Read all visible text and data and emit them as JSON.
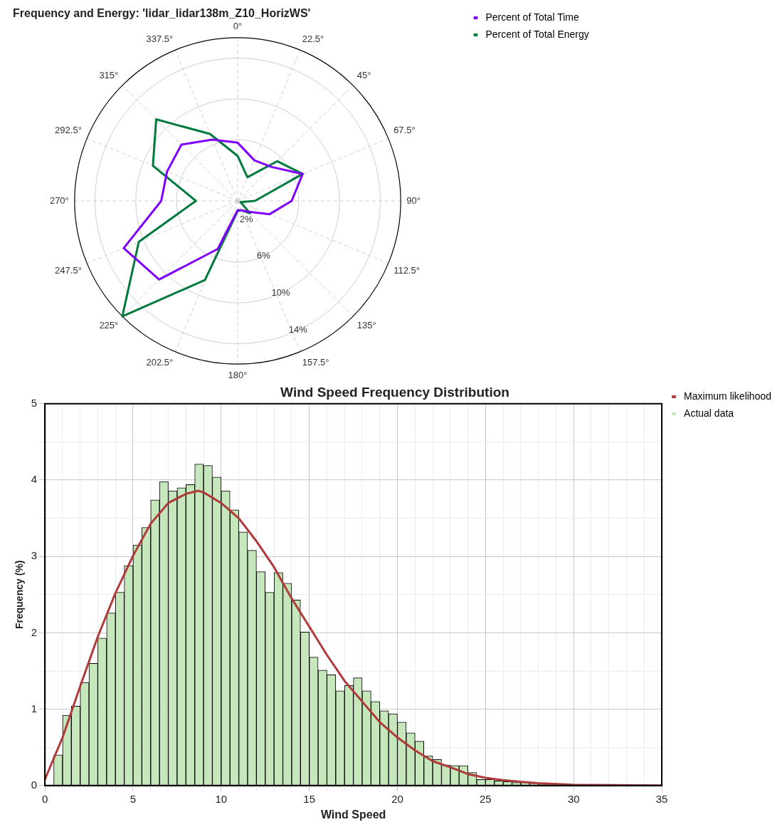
{
  "chart_data": [
    {
      "type": "radar",
      "title": "Frequency and Energy: 'lidar_lidar138m_Z10_HorizWS'",
      "categories": [
        "0°",
        "22.5°",
        "45°",
        "67.5°",
        "90°",
        "112.5°",
        "135°",
        "157.5°",
        "180°",
        "202.5°",
        "225°",
        "247.5°",
        "270°",
        "292.5°",
        "315°",
        "337.5°"
      ],
      "series": [
        {
          "name": "Percent of Total Time",
          "color": "#8000ff",
          "values": [
            5.7,
            4.3,
            4.7,
            6.9,
            5.3,
            3.4,
            1.5,
            1.0,
            0.9,
            5.1,
            10.9,
            12.1,
            7.5,
            7.5,
            7.8,
            6.5
          ]
        },
        {
          "name": "Percent of Total Energy",
          "color": "#007a3d",
          "values": [
            4.4,
            2.5,
            5.5,
            6.9,
            1.7,
            0.3,
            1.7,
            1.0,
            1.0,
            8.4,
            16.0,
            10.5,
            4.1,
            9.0,
            11.3,
            7.1
          ]
        }
      ],
      "ylim": [
        0,
        16
      ],
      "yticks": [
        {
          "value": 2,
          "label": "2%"
        },
        {
          "value": 6,
          "label": "6%"
        },
        {
          "value": 10,
          "label": "10%"
        },
        {
          "value": 14,
          "label": "14%"
        }
      ],
      "grid": true,
      "legend": "top right",
      "line_style": "solid",
      "marker": "none"
    },
    {
      "type": "histogram",
      "title": "Wind Speed Frequency Distribution",
      "xlabel": "Wind Speed",
      "ylabel": "Frequency (%)",
      "series": [
        {
          "name": "Maximum likelihood",
          "type": "line",
          "color": "#b03a3a",
          "x": [
            0,
            1,
            2,
            3,
            4,
            5,
            6,
            7,
            8,
            8.7,
            9,
            10,
            11,
            12,
            13,
            14,
            15,
            16,
            17,
            18,
            19,
            20,
            21,
            22,
            23,
            24,
            25,
            26,
            27,
            28,
            30,
            35
          ],
          "values": [
            0.08,
            0.63,
            1.3,
            1.95,
            2.52,
            3.01,
            3.43,
            3.7,
            3.82,
            3.86,
            3.84,
            3.7,
            3.5,
            3.2,
            2.86,
            2.45,
            2.08,
            1.71,
            1.37,
            1.1,
            0.83,
            0.63,
            0.46,
            0.32,
            0.24,
            0.15,
            0.1,
            0.07,
            0.05,
            0.03,
            0.01,
            0
          ]
        },
        {
          "name": "Actual data",
          "type": "histogram",
          "color": "#c6e6bb",
          "bins": [
            0.5,
            1,
            1.5,
            2,
            2.5,
            3,
            3.5,
            4,
            4.5,
            5,
            5.5,
            6,
            6.5,
            7,
            7.5,
            8,
            8.5,
            9,
            9.5,
            10,
            10.5,
            11,
            11.5,
            12,
            12.5,
            13,
            13.5,
            14,
            14.5,
            15,
            15.5,
            16,
            16.5,
            17,
            17.5,
            18,
            18.5,
            19,
            19.5,
            20,
            20.5,
            21,
            21.5,
            22,
            22.5,
            23,
            23.5,
            24,
            24.5,
            25,
            25.5,
            26,
            26.5,
            27,
            27.5,
            28,
            28.5,
            29
          ],
          "values": [
            0.4,
            0.92,
            1.04,
            1.35,
            1.6,
            1.93,
            2.26,
            2.53,
            2.88,
            3.15,
            3.38,
            3.74,
            3.98,
            3.86,
            3.9,
            3.94,
            4.21,
            4.19,
            4.04,
            3.86,
            3.61,
            3.32,
            3.08,
            2.8,
            2.53,
            2.79,
            2.65,
            2.43,
            2.01,
            1.68,
            1.51,
            1.45,
            1.24,
            1.31,
            1.41,
            1.24,
            1.1,
            0.98,
            0.94,
            0.83,
            0.69,
            0.58,
            0.39,
            0.34,
            0.27,
            0.26,
            0.26,
            0.17,
            0.08,
            0.08,
            0.06,
            0.05,
            0.04,
            0.04,
            0.03,
            0.02,
            0.01
          ]
        }
      ],
      "xlim": [
        0,
        35
      ],
      "xticks": [
        0,
        {
          "value": 1,
          "label": null
        },
        {
          "value": 2,
          "label": null
        },
        {
          "value": 3,
          "label": null
        },
        {
          "value": 4,
          "label": null
        },
        5,
        {
          "value": 6,
          "label": null
        },
        {
          "value": 7,
          "label": null
        },
        {
          "value": 8,
          "label": null
        },
        {
          "value": 9,
          "label": null
        },
        10,
        {
          "value": 11,
          "label": null
        },
        {
          "value": 12,
          "label": null
        },
        {
          "value": 13,
          "label": null
        },
        {
          "value": 14,
          "label": null
        },
        15,
        {
          "value": 16,
          "label": null
        },
        {
          "value": 17,
          "label": null
        },
        {
          "value": 18,
          "label": null
        },
        {
          "value": 19,
          "label": null
        },
        20,
        {
          "value": 21,
          "label": null
        },
        {
          "value": 22,
          "label": null
        },
        {
          "value": 23,
          "label": null
        },
        {
          "value": 24,
          "label": null
        },
        25,
        {
          "value": 26,
          "label": null
        },
        {
          "value": 27,
          "label": null
        },
        {
          "value": 28,
          "label": null
        },
        {
          "value": 29,
          "label": null
        },
        30,
        {
          "value": 31,
          "label": null
        },
        {
          "value": 32,
          "label": null
        },
        {
          "value": 33,
          "label": null
        },
        {
          "value": 34,
          "label": null
        },
        35
      ],
      "ylim": [
        0,
        5
      ],
      "yticks": [
        0,
        {
          "value": 0.5,
          "label": null
        },
        1,
        {
          "value": 1.5,
          "label": null
        },
        2,
        {
          "value": 2.5,
          "label": null
        },
        3,
        {
          "value": 3.5,
          "label": null
        },
        4,
        {
          "value": 4.5,
          "label": null
        },
        5
      ],
      "grid": true,
      "legend": "top right",
      "marker": "none",
      "line_style": "solid"
    }
  ]
}
